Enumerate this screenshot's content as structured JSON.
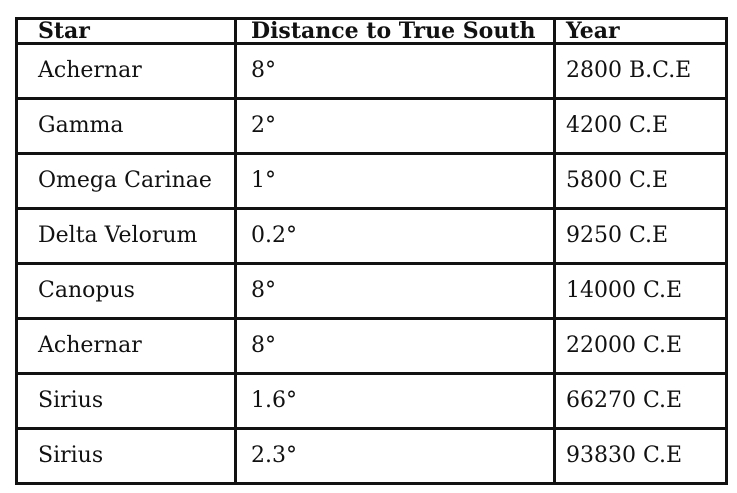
{
  "table": {
    "headers": [
      "Star",
      "Distance to True South",
      "Year"
    ],
    "rows": [
      [
        "Achernar",
        "8°",
        "2800 B.C.E"
      ],
      [
        "Gamma",
        "2°",
        "4200 C.E"
      ],
      [
        "Omega Carinae",
        "1°",
        "5800 C.E"
      ],
      [
        "Delta Velorum",
        "0.2°",
        "9250 C.E"
      ],
      [
        "Canopus",
        "8°",
        "14000 C.E"
      ],
      [
        "Achernar",
        "8°",
        "22000 C.E"
      ],
      [
        "Sirius",
        "1.6°",
        "66270 C.E"
      ],
      [
        "Sirius",
        "2.3°",
        "93830 C.E"
      ]
    ]
  }
}
